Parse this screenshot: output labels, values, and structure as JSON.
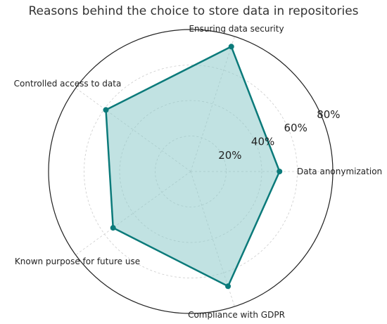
{
  "chart_data": {
    "type": "radar",
    "title": "Reasons behind the choice to store data in repositories",
    "categories": [
      "Data anonymization",
      "Ensuring data security",
      "Controlled access to data",
      "Known purpose for future use",
      "Compliance with GDPR"
    ],
    "values": [
      50,
      74,
      59,
      54,
      68
    ],
    "unit": "%",
    "radial_ticks": [
      "20%",
      "40%",
      "60%",
      "80%"
    ],
    "radial_tick_values": [
      20,
      40,
      60,
      80
    ],
    "rmax": 80,
    "grid": true,
    "line_color": "#0b7a7a",
    "fill_color": "#8ecaca"
  }
}
